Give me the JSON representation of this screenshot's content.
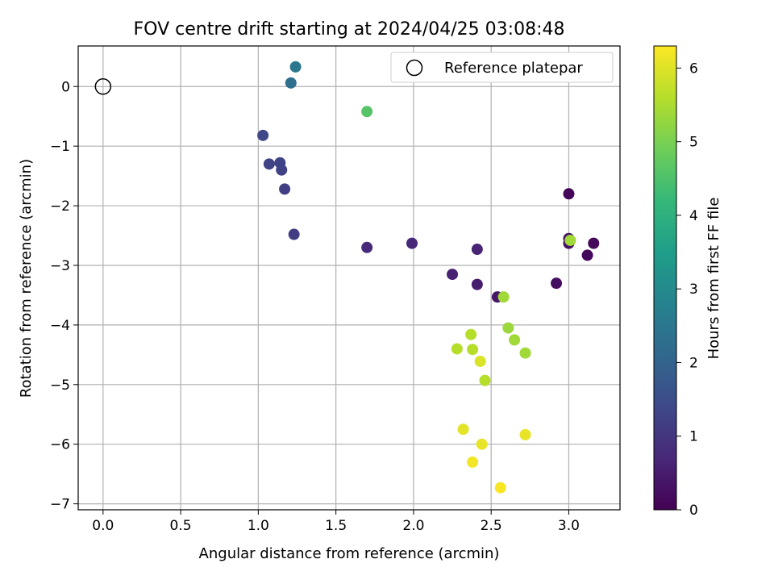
{
  "chart_data": {
    "type": "scatter",
    "title": "FOV centre drift starting at 2024/04/25 03:08:48",
    "xlabel": "Angular distance from reference (arcmin)",
    "ylabel": "Rotation from reference (arcmin)",
    "xlim": [
      -0.16,
      3.33
    ],
    "ylim": [
      -7.1,
      0.68
    ],
    "xticks": [
      0.0,
      0.5,
      1.0,
      1.5,
      2.0,
      2.5,
      3.0
    ],
    "xtick_labels": [
      "0.0",
      "0.5",
      "1.0",
      "1.5",
      "2.0",
      "2.5",
      "3.0"
    ],
    "yticks": [
      0,
      -1,
      -2,
      -3,
      -4,
      -5,
      -6,
      -7
    ],
    "ytick_labels": [
      "0",
      "−1",
      "−2",
      "−3",
      "−4",
      "−5",
      "−6",
      "−7"
    ],
    "grid": true,
    "legend": {
      "position": "top-right",
      "entries": [
        "Reference platepar"
      ]
    },
    "reference_point": {
      "x": 0.0,
      "y": 0.0
    },
    "colorbar": {
      "label": "Hours from first FF file",
      "min": 0,
      "max": 6.3,
      "ticks": [
        0,
        1,
        2,
        3,
        4,
        5,
        6
      ],
      "tick_labels": [
        "0",
        "1",
        "2",
        "3",
        "4",
        "5",
        "6"
      ],
      "colormap": "viridis"
    },
    "points": [
      {
        "x": 3.0,
        "y": -1.8,
        "hours": 0.05
      },
      {
        "x": 3.16,
        "y": -2.63,
        "hours": 0.1
      },
      {
        "x": 3.12,
        "y": -2.83,
        "hours": 0.15
      },
      {
        "x": 2.92,
        "y": -3.3,
        "hours": 0.25
      },
      {
        "x": 3.0,
        "y": -2.63,
        "hours": 0.3
      },
      {
        "x": 3.0,
        "y": -2.55,
        "hours": 0.35
      },
      {
        "x": 2.54,
        "y": -3.53,
        "hours": 0.4
      },
      {
        "x": 2.41,
        "y": -3.32,
        "hours": 0.5
      },
      {
        "x": 2.25,
        "y": -3.15,
        "hours": 0.6
      },
      {
        "x": 2.41,
        "y": -2.73,
        "hours": 0.65
      },
      {
        "x": 1.99,
        "y": -2.63,
        "hours": 0.7
      },
      {
        "x": 1.7,
        "y": -2.7,
        "hours": 0.75
      },
      {
        "x": 1.23,
        "y": -2.48,
        "hours": 1.15
      },
      {
        "x": 1.17,
        "y": -1.72,
        "hours": 1.2
      },
      {
        "x": 1.15,
        "y": -1.4,
        "hours": 1.25
      },
      {
        "x": 1.14,
        "y": -1.28,
        "hours": 1.3
      },
      {
        "x": 1.07,
        "y": -1.3,
        "hours": 1.3
      },
      {
        "x": 1.03,
        "y": -0.82,
        "hours": 1.35
      },
      {
        "x": 1.21,
        "y": 0.06,
        "hours": 2.3
      },
      {
        "x": 1.24,
        "y": 0.33,
        "hours": 2.5
      },
      {
        "x": 1.7,
        "y": -0.42,
        "hours": 4.6
      },
      {
        "x": 3.01,
        "y": -2.58,
        "hours": 5.4
      },
      {
        "x": 2.58,
        "y": -3.53,
        "hours": 5.4
      },
      {
        "x": 2.61,
        "y": -4.05,
        "hours": 5.35
      },
      {
        "x": 2.65,
        "y": -4.25,
        "hours": 5.4
      },
      {
        "x": 2.72,
        "y": -4.47,
        "hours": 5.4
      },
      {
        "x": 2.37,
        "y": -4.16,
        "hours": 5.6
      },
      {
        "x": 2.38,
        "y": -4.41,
        "hours": 5.6
      },
      {
        "x": 2.28,
        "y": -4.4,
        "hours": 5.6
      },
      {
        "x": 2.46,
        "y": -4.93,
        "hours": 5.6
      },
      {
        "x": 2.43,
        "y": -4.61,
        "hours": 5.95
      },
      {
        "x": 2.32,
        "y": -5.75,
        "hours": 6.05
      },
      {
        "x": 2.44,
        "y": -6.0,
        "hours": 6.1
      },
      {
        "x": 2.72,
        "y": -5.84,
        "hours": 6.1
      },
      {
        "x": 2.38,
        "y": -6.3,
        "hours": 6.2
      },
      {
        "x": 2.56,
        "y": -6.73,
        "hours": 6.25
      }
    ]
  }
}
